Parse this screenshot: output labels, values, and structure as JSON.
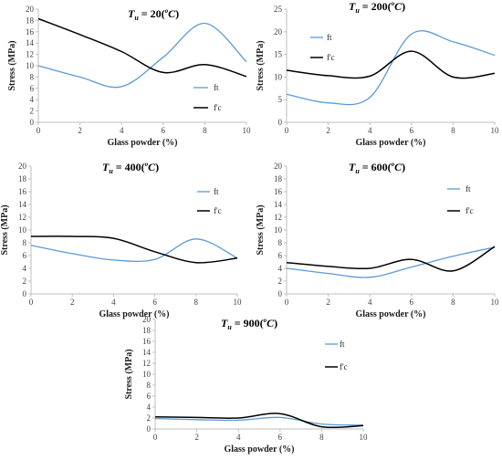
{
  "colors": {
    "ft": "#5b9bd5",
    "fpc": "#000000",
    "axis": "#bfbfbf",
    "text": "#404040"
  },
  "chart_data": [
    {
      "type": "line",
      "title": {
        "var": "T",
        "sub": "u",
        "eq": " = 20(",
        "sup": "o",
        "unit": "C",
        "close": ")"
      },
      "xlabel": "Glass powder (%)",
      "ylabel": "Stress (MPa)",
      "xlim": [
        0,
        10
      ],
      "ylim": [
        0,
        20
      ],
      "xticks": [
        "0",
        "2",
        "4",
        "6",
        "8",
        "10"
      ],
      "yticks": [
        "0",
        "2",
        "4",
        "6",
        "8",
        "10",
        "12",
        "14",
        "16",
        "18",
        "20"
      ],
      "grid": false,
      "legend_position": "right",
      "series": [
        {
          "name": "ft",
          "color": "#5b9bd5",
          "x": [
            0,
            2,
            4,
            6,
            8,
            10
          ],
          "values": [
            10,
            8,
            6.3,
            11.5,
            17.5,
            10.7
          ]
        },
        {
          "name": "f'c",
          "color": "#000000",
          "x": [
            0,
            2,
            4,
            6,
            8,
            10
          ],
          "values": [
            18.3,
            15.5,
            12.5,
            8.8,
            10.2,
            8.1
          ]
        }
      ]
    },
    {
      "type": "line",
      "title": {
        "var": "T",
        "sub": "u",
        "eq": " = 200(",
        "sup": "o",
        "unit": "C",
        "close": ")"
      },
      "xlabel": "Glass powder (%)",
      "ylabel": "Stress (MPa)",
      "xlim": [
        0,
        10
      ],
      "ylim": [
        0,
        25
      ],
      "xticks": [
        "0",
        "2",
        "4",
        "6",
        "8",
        "10"
      ],
      "yticks": [
        "0",
        "5",
        "10",
        "15",
        "20",
        "25"
      ],
      "grid": false,
      "legend_position": "left",
      "series": [
        {
          "name": "ft",
          "color": "#5b9bd5",
          "x": [
            0,
            2,
            4,
            6,
            8,
            10
          ],
          "values": [
            6.2,
            4.3,
            5.5,
            19.5,
            17.8,
            14.8
          ]
        },
        {
          "name": "f'c",
          "color": "#000000",
          "x": [
            0,
            2,
            4,
            6,
            8,
            10
          ],
          "values": [
            11.5,
            10.3,
            10.2,
            15.7,
            10.0,
            10.8
          ]
        }
      ]
    },
    {
      "type": "line",
      "title": {
        "var": "T",
        "sub": "u",
        "eq": " = 400(",
        "sup": "o",
        "unit": "C",
        "close": ")"
      },
      "xlabel": "Glass powder (%)",
      "ylabel": "Stress (MPa)",
      "xlim": [
        0,
        10
      ],
      "ylim": [
        0,
        20
      ],
      "xticks": [
        "0",
        "2",
        "4",
        "6",
        "8",
        "10"
      ],
      "yticks": [
        "0",
        "2",
        "4",
        "6",
        "8",
        "10",
        "12",
        "14",
        "16",
        "18",
        "20"
      ],
      "grid": false,
      "legend_position": "right",
      "series": [
        {
          "name": "ft",
          "color": "#5b9bd5",
          "x": [
            0,
            2,
            4,
            6,
            8,
            10
          ],
          "values": [
            7.6,
            6.3,
            5.3,
            5.4,
            8.6,
            5.6
          ]
        },
        {
          "name": "f'c",
          "color": "#000000",
          "x": [
            0,
            2,
            4,
            6,
            8,
            10
          ],
          "values": [
            9.0,
            9.0,
            8.7,
            6.6,
            4.9,
            5.6
          ]
        }
      ]
    },
    {
      "type": "line",
      "title": {
        "var": "T",
        "sub": "u",
        "eq": " = 600(",
        "sup": "o",
        "unit": "C",
        "close": ")"
      },
      "xlabel": "Glass powder (%)",
      "ylabel": "Stress (MPa)",
      "xlim": [
        0,
        10
      ],
      "ylim": [
        0,
        20
      ],
      "xticks": [
        "0",
        "2",
        "4",
        "6",
        "8",
        "10"
      ],
      "yticks": [
        "0",
        "2",
        "4",
        "6",
        "8",
        "10",
        "12",
        "14",
        "16",
        "18",
        "20"
      ],
      "grid": false,
      "legend_position": "right",
      "series": [
        {
          "name": "ft",
          "color": "#5b9bd5",
          "x": [
            0,
            2,
            4,
            6,
            8,
            10
          ],
          "values": [
            4.0,
            3.2,
            2.6,
            4.2,
            5.9,
            7.3
          ]
        },
        {
          "name": "f'c",
          "color": "#000000",
          "x": [
            0,
            2,
            4,
            6,
            8,
            10
          ],
          "values": [
            4.9,
            4.3,
            4.0,
            5.4,
            3.6,
            7.4
          ]
        }
      ]
    },
    {
      "type": "line",
      "title": {
        "var": "T",
        "sub": "u",
        "eq": " = 900(",
        "sup": "o",
        "unit": "C",
        "close": ")"
      },
      "xlabel": "Glass powder (%)",
      "ylabel": "Stress (MPa)",
      "xlim": [
        0,
        10
      ],
      "ylim": [
        0,
        20
      ],
      "xticks": [
        "0",
        "2",
        "4",
        "6",
        "8",
        "10"
      ],
      "yticks": [
        "0",
        "2",
        "4",
        "6",
        "8",
        "10",
        "12",
        "14",
        "16",
        "18",
        "20"
      ],
      "grid": false,
      "legend_position": "right",
      "series": [
        {
          "name": "ft",
          "color": "#5b9bd5",
          "x": [
            0,
            2,
            4,
            6,
            8,
            10
          ],
          "values": [
            1.9,
            1.7,
            1.6,
            2.1,
            0.9,
            0.7
          ]
        },
        {
          "name": "f'c",
          "color": "#000000",
          "x": [
            0,
            2,
            4,
            6,
            8,
            10
          ],
          "values": [
            2.2,
            2.1,
            2.0,
            2.8,
            0.4,
            0.6
          ]
        }
      ]
    }
  ]
}
